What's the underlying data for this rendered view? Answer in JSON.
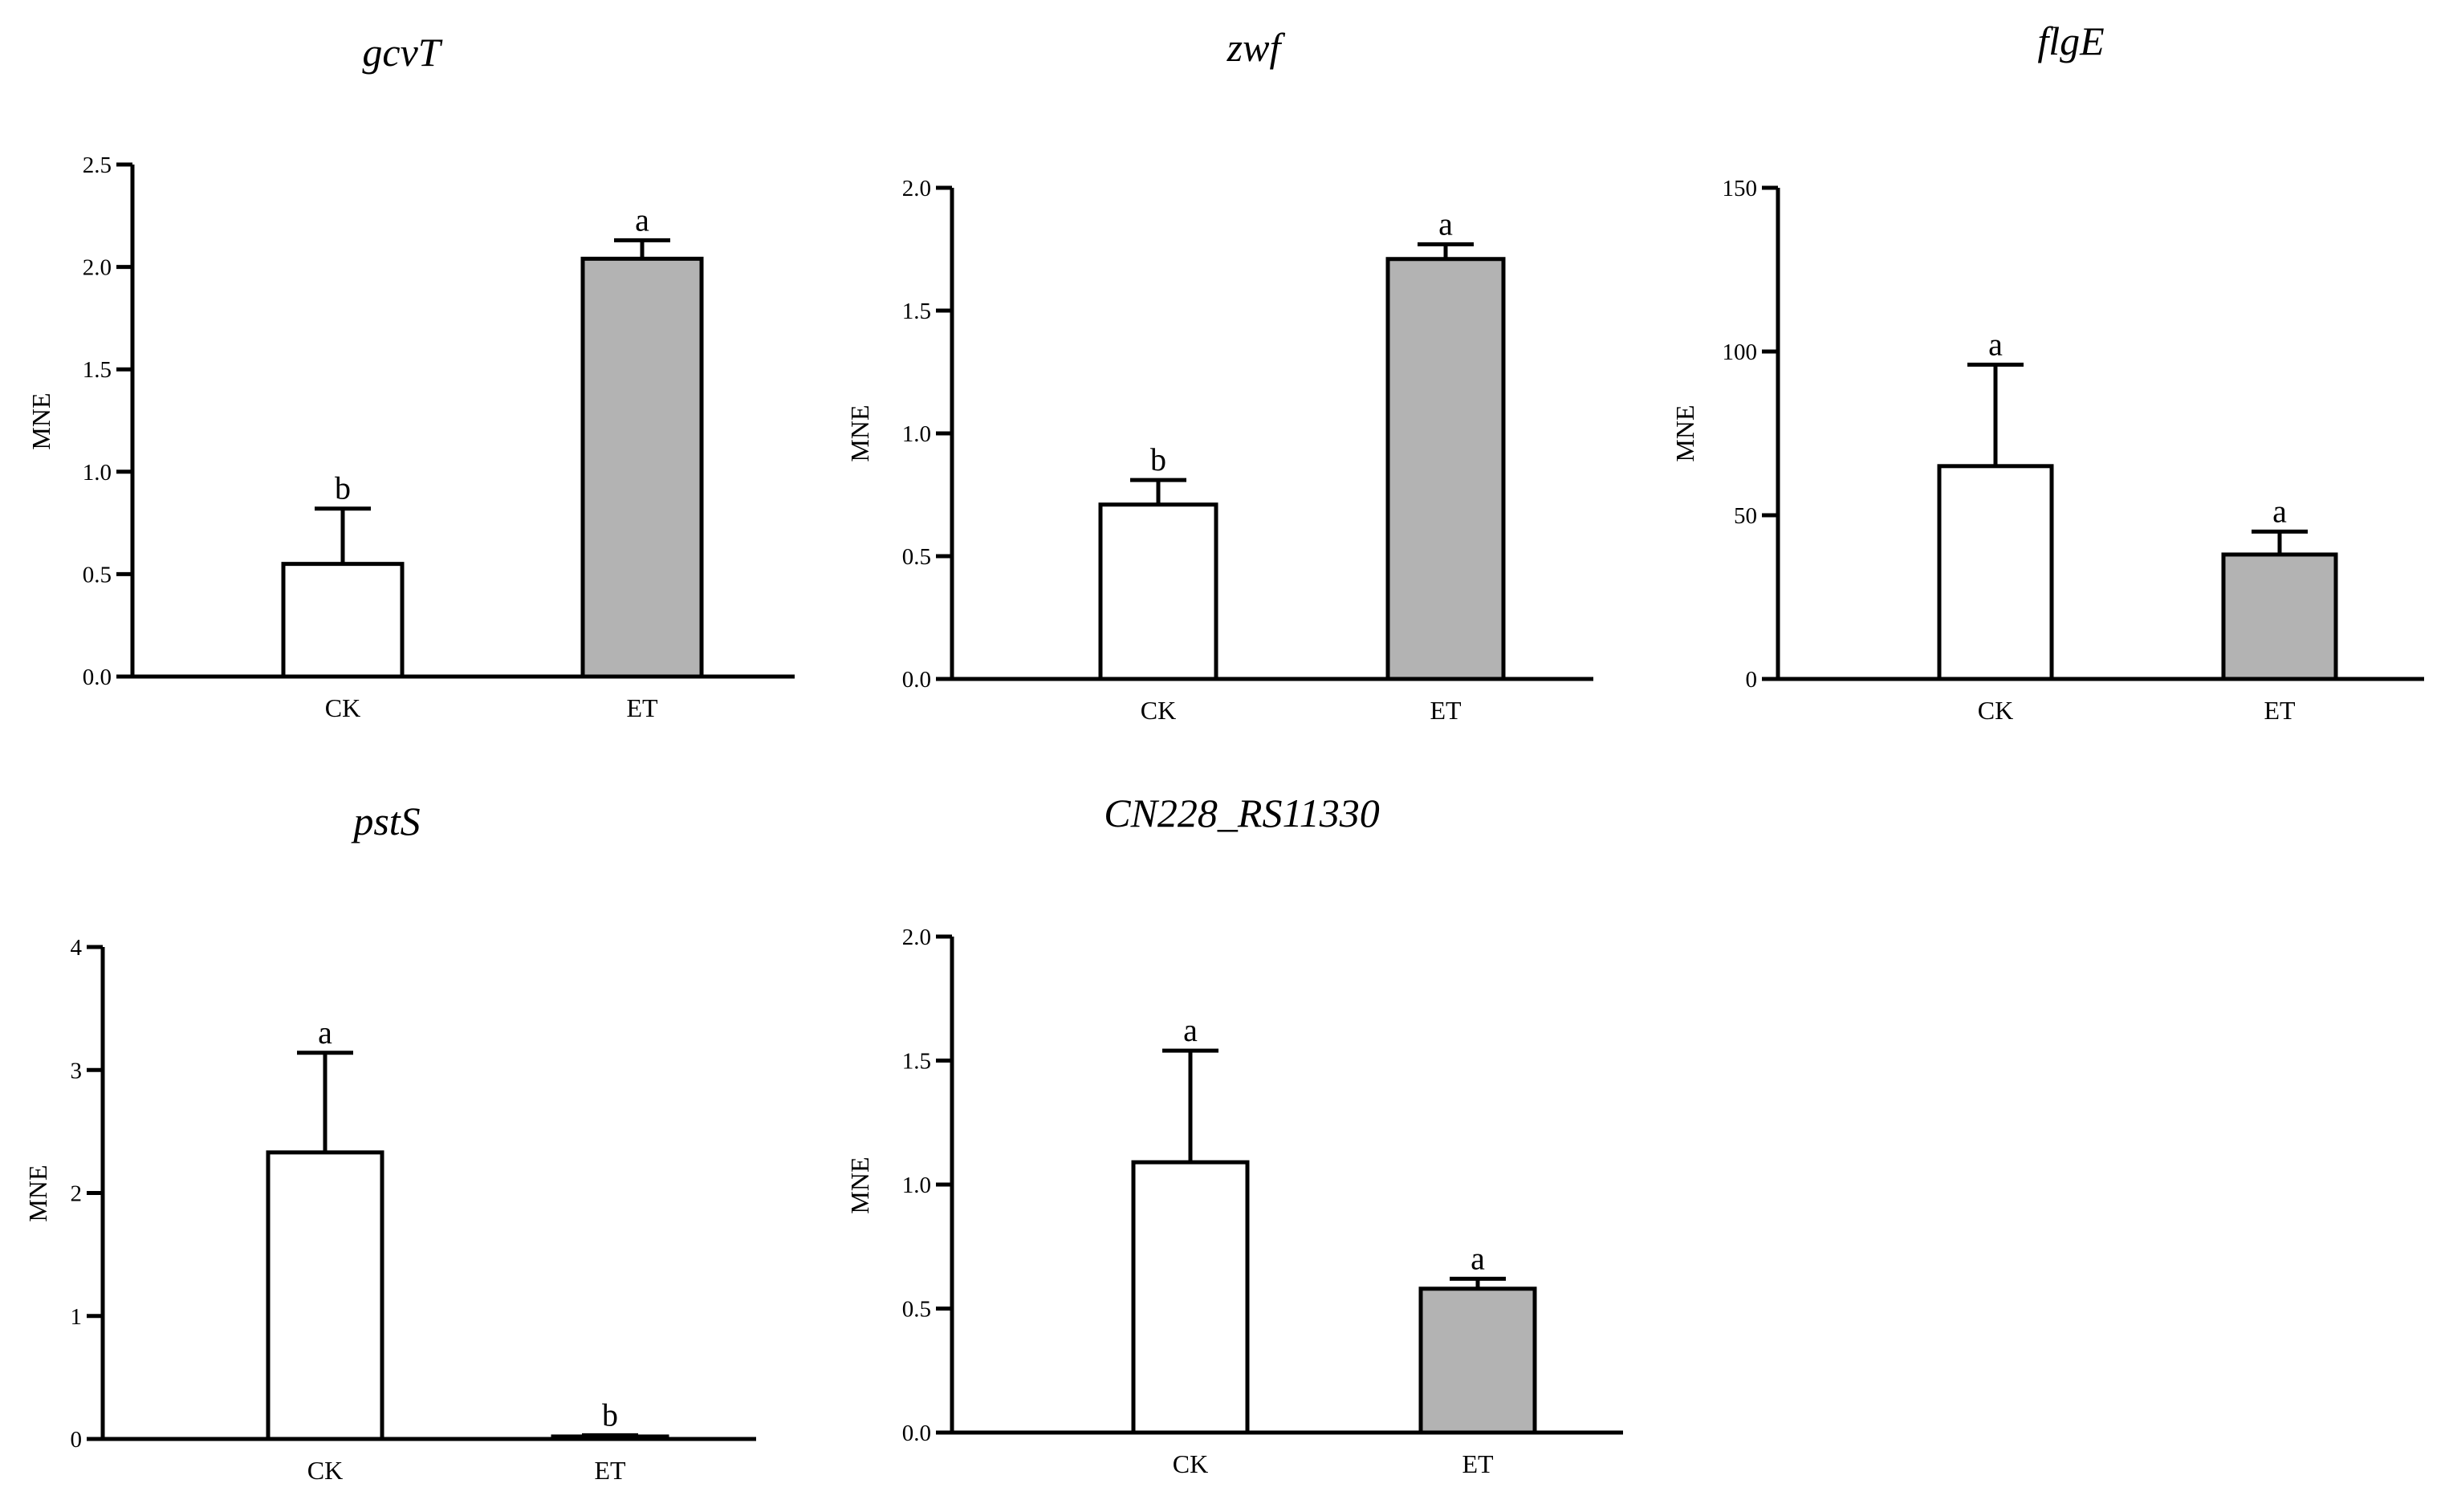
{
  "colors": {
    "ck_fill": "#ffffff",
    "et_fill": "#b3b3b3",
    "stroke": "#000000"
  },
  "chart_data": [
    {
      "id": "gcvT",
      "type": "bar",
      "title": "gcvT",
      "xlabel": "",
      "ylabel": "MNE",
      "ylim": [
        0,
        2.5
      ],
      "yticks": [
        0.0,
        0.5,
        1.0,
        1.5,
        2.0,
        2.5
      ],
      "yticklabels": [
        "0.0",
        "0.5",
        "1.0",
        "1.5",
        "2.0",
        "2.5"
      ],
      "categories": [
        "CK",
        "ET"
      ],
      "values": [
        0.55,
        2.04
      ],
      "errors": [
        0.27,
        0.09
      ],
      "significance": [
        "b",
        "a"
      ]
    },
    {
      "id": "zwf",
      "type": "bar",
      "title": "zwf",
      "xlabel": "",
      "ylabel": "MNE",
      "ylim": [
        0,
        2.0
      ],
      "yticks": [
        0.0,
        0.5,
        1.0,
        1.5,
        2.0
      ],
      "yticklabels": [
        "0.0",
        "0.5",
        "1.0",
        "1.5",
        "2.0"
      ],
      "categories": [
        "CK",
        "ET"
      ],
      "values": [
        0.71,
        1.71
      ],
      "errors": [
        0.1,
        0.06
      ],
      "significance": [
        "b",
        "a"
      ]
    },
    {
      "id": "flgE",
      "type": "bar",
      "title": "flgE",
      "xlabel": "",
      "ylabel": "MNE",
      "ylim": [
        0,
        150
      ],
      "yticks": [
        0,
        50,
        100,
        150
      ],
      "yticklabels": [
        "0",
        "50",
        "100",
        "150"
      ],
      "categories": [
        "CK",
        "ET"
      ],
      "values": [
        65,
        38
      ],
      "errors": [
        31,
        7
      ],
      "significance": [
        "a",
        "a"
      ]
    },
    {
      "id": "pstS",
      "type": "bar",
      "title": "pstS",
      "xlabel": "",
      "ylabel": "MNE",
      "ylim": [
        0,
        4
      ],
      "yticks": [
        0,
        1,
        2,
        3,
        4
      ],
      "yticklabels": [
        "0",
        "1",
        "2",
        "3",
        "4"
      ],
      "categories": [
        "CK",
        "ET"
      ],
      "values": [
        2.33,
        0.02
      ],
      "errors": [
        0.81,
        0.01
      ],
      "significance": [
        "a",
        "b"
      ]
    },
    {
      "id": "CN228_RS11330",
      "type": "bar",
      "title": "CN228_RS11330",
      "xlabel": "",
      "ylabel": "MNE",
      "ylim": [
        0,
        2.0
      ],
      "yticks": [
        0.0,
        0.5,
        1.0,
        1.5,
        2.0
      ],
      "yticklabels": [
        "0.0",
        "0.5",
        "1.0",
        "1.5",
        "2.0"
      ],
      "categories": [
        "CK",
        "ET"
      ],
      "values": [
        1.09,
        0.58
      ],
      "errors": [
        0.45,
        0.04
      ],
      "significance": [
        "a",
        "a"
      ]
    }
  ]
}
